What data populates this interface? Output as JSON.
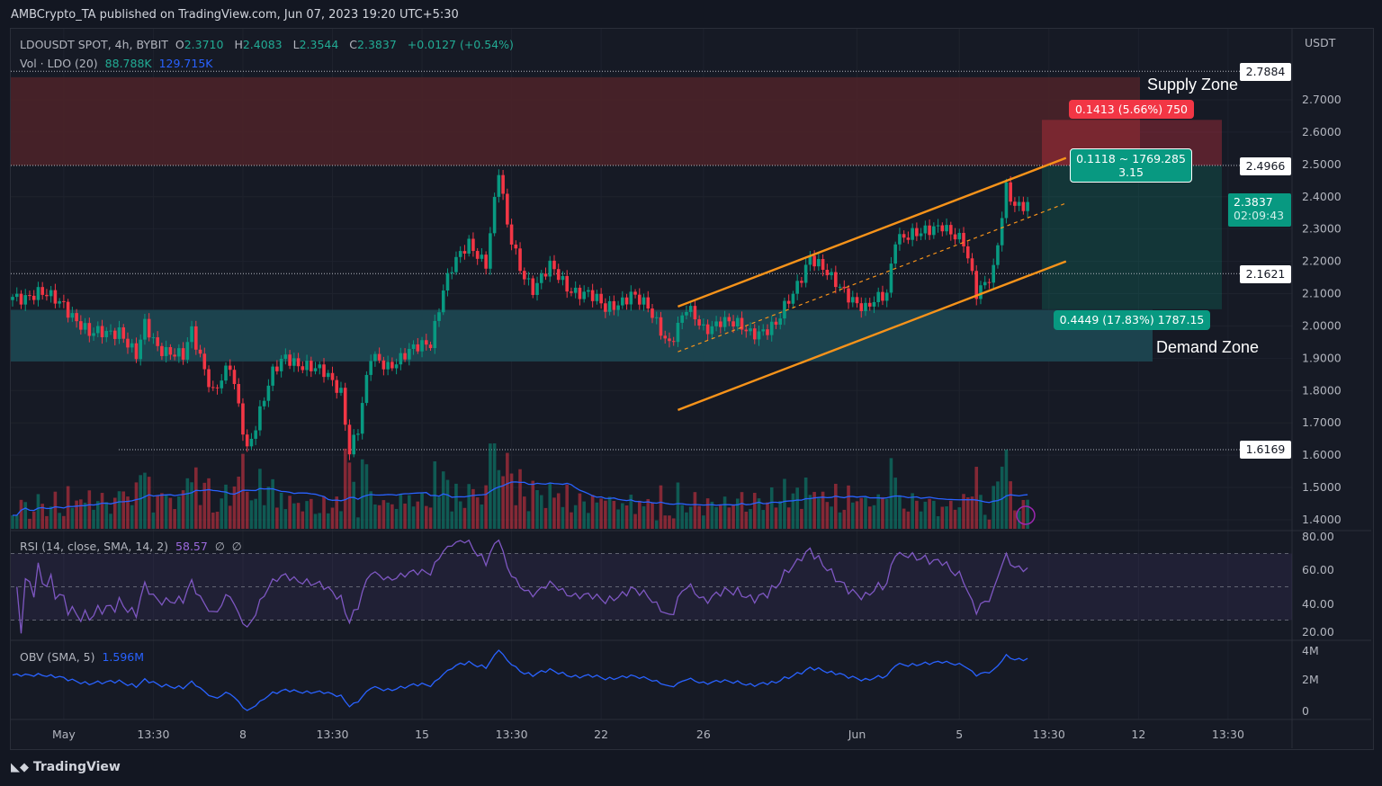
{
  "publish_line": "AMBCrypto_TA published on TradingView.com, Jun 07, 2023 19:20 UTC+5:30",
  "symbol": {
    "name": "LDOUSDT SPOT, 4h, BYBIT",
    "o_label": "O",
    "o": "2.3710",
    "h_label": "H",
    "h": "2.4083",
    "l_label": "L",
    "l": "2.3544",
    "c_label": "C",
    "c": "2.3837",
    "change": "+0.0127 (+0.54%)"
  },
  "volume_legend": {
    "label": "Vol · LDO (20)",
    "value": "88.788K",
    "ma": "129.715K"
  },
  "rsi_legend": {
    "label": "RSI (14, close, SMA, 14, 2)",
    "value": "58.57",
    "extra1": "∅",
    "extra2": "∅"
  },
  "obv_legend": {
    "label": "OBV (SMA, 5)",
    "value": "1.596M"
  },
  "currency": "USDT",
  "annotations": {
    "supply": "Supply Zone",
    "demand": "Demand Zone",
    "stop": "0.1413 (5.66%) 750",
    "entry": "0.1118 ~ 1769.285",
    "ratio": "3.15",
    "target": "0.4449 (17.83%) 1787.15"
  },
  "price_labels": {
    "hi": "2.7884",
    "entry": "2.4966",
    "last": "2.3837",
    "countdown": "02:09:43",
    "mid": "2.1621",
    "lo": "1.6169"
  },
  "footer": "TradingView",
  "colors": {
    "up": "#089981",
    "down": "#f23645",
    "ma": "#2962ff",
    "rsi": "#7e57c2",
    "channel": "#f7931a"
  },
  "chart_data": {
    "type": "candlestick",
    "title": "LDOUSDT SPOT, 4h, BYBIT",
    "ylim": [
      1.38,
      2.82
    ],
    "y_ticks": [
      "2.7000",
      "2.6000",
      "2.5000",
      "2.4000",
      "2.3000",
      "2.2000",
      "2.1000",
      "2.0000",
      "1.9000",
      "1.8000",
      "1.7000",
      "1.6000",
      "1.5000",
      "1.4000"
    ],
    "rsi_ticks": [
      "80.00",
      "60.00",
      "40.00",
      "20.00"
    ],
    "obv_ticks": [
      "4M",
      "2M",
      "0"
    ],
    "x_ticks": [
      {
        "label": "May",
        "i": 12
      },
      {
        "label": "13:30",
        "i": 33
      },
      {
        "label": "8",
        "i": 54
      },
      {
        "label": "13:30",
        "i": 75
      },
      {
        "label": "15",
        "i": 96
      },
      {
        "label": "13:30",
        "i": 117
      },
      {
        "label": "22",
        "i": 138
      },
      {
        "label": "26",
        "i": 162
      },
      {
        "label": "Jun",
        "i": 198
      },
      {
        "label": "5",
        "i": 222
      },
      {
        "label": "13:30",
        "i": 243
      },
      {
        "label": "12",
        "i": 264
      },
      {
        "label": "13:30",
        "i": 285
      }
    ],
    "close_anchors": [
      [
        0,
        2.09
      ],
      [
        6,
        2.1
      ],
      [
        12,
        2.07
      ],
      [
        18,
        1.97
      ],
      [
        25,
        1.99
      ],
      [
        29,
        1.9
      ],
      [
        31,
        2.0
      ],
      [
        34,
        1.94
      ],
      [
        40,
        1.9
      ],
      [
        42,
        1.98
      ],
      [
        47,
        1.8
      ],
      [
        51,
        1.87
      ],
      [
        55,
        1.62
      ],
      [
        59,
        1.78
      ],
      [
        61,
        1.85
      ],
      [
        64,
        1.9
      ],
      [
        69,
        1.88
      ],
      [
        73,
        1.85
      ],
      [
        77,
        1.8
      ],
      [
        79,
        1.62
      ],
      [
        81,
        1.68
      ],
      [
        84,
        1.9
      ],
      [
        88,
        1.88
      ],
      [
        92,
        1.91
      ],
      [
        98,
        1.95
      ],
      [
        101,
        2.12
      ],
      [
        103,
        2.18
      ],
      [
        107,
        2.25
      ],
      [
        111,
        2.2
      ],
      [
        114,
        2.48
      ],
      [
        116,
        2.3
      ],
      [
        119,
        2.18
      ],
      [
        122,
        2.12
      ],
      [
        126,
        2.18
      ],
      [
        130,
        2.12
      ],
      [
        135,
        2.1
      ],
      [
        139,
        2.05
      ],
      [
        145,
        2.1
      ],
      [
        149,
        2.05
      ],
      [
        154,
        1.95
      ],
      [
        158,
        2.05
      ],
      [
        162,
        1.99
      ],
      [
        166,
        2.02
      ],
      [
        173,
        1.98
      ],
      [
        179,
        2.0
      ],
      [
        183,
        2.1
      ],
      [
        187,
        2.22
      ],
      [
        192,
        2.14
      ],
      [
        196,
        2.1
      ],
      [
        200,
        2.05
      ],
      [
        205,
        2.1
      ],
      [
        207,
        2.28
      ],
      [
        213,
        2.28
      ],
      [
        218,
        2.32
      ],
      [
        223,
        2.25
      ],
      [
        226,
        2.1
      ],
      [
        230,
        2.18
      ],
      [
        233,
        2.42
      ],
      [
        235,
        2.36
      ],
      [
        238,
        2.38
      ]
    ],
    "levels": {
      "supply_zone": [
        2.4966,
        2.77
      ],
      "demand_zone": [
        1.89,
        2.05
      ],
      "position_stop": 2.6379,
      "position_entry": 2.4966,
      "position_target": 2.0517
    },
    "channel": {
      "upper": [
        [
          156,
          2.06
        ],
        [
          247,
          2.52
        ]
      ],
      "middle": [
        [
          156,
          1.92
        ],
        [
          247,
          2.38
        ]
      ],
      "lower": [
        [
          156,
          1.74
        ],
        [
          247,
          2.2
        ]
      ]
    }
  }
}
